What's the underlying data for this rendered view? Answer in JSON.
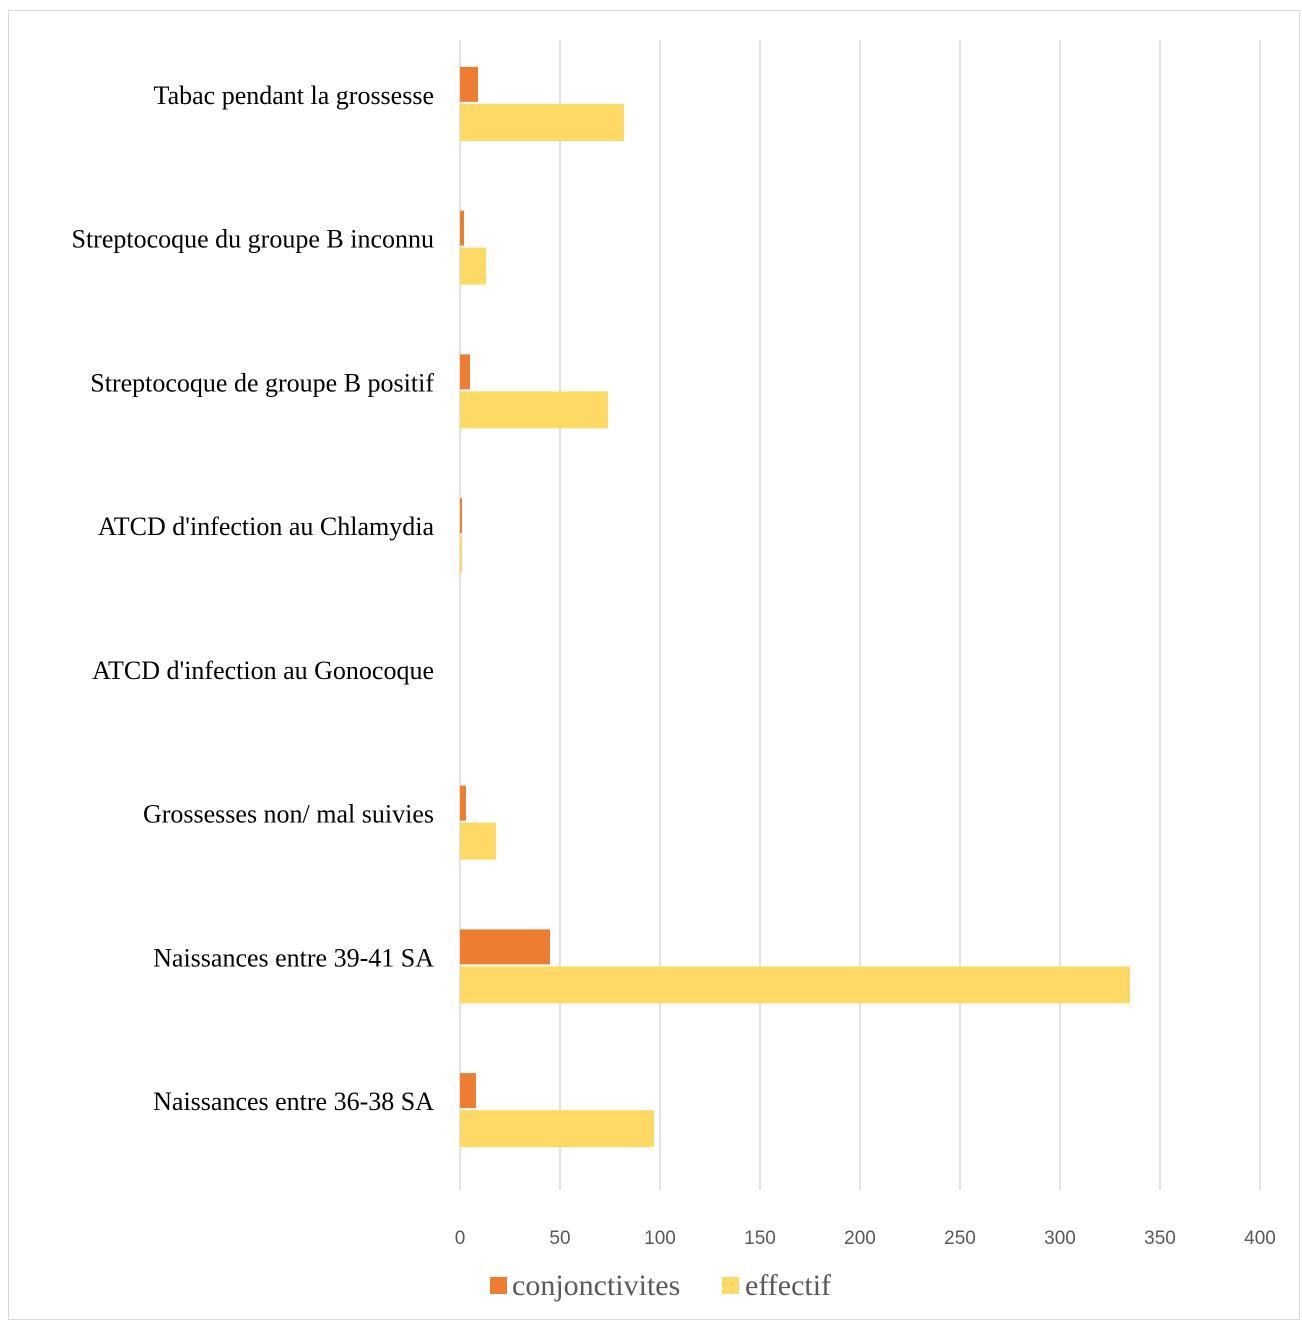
{
  "chart_data": {
    "type": "bar",
    "orientation": "horizontal",
    "categories": [
      "Tabac pendant la grossesse",
      "Streptocoque du groupe B inconnu",
      "Streptocoque de groupe B positif",
      "ATCD d'infection au Chlamydia",
      "ATCD d'infection au Gonocoque",
      "Grossesses non/ mal suivies",
      "Naissances entre 39-41 SA",
      "Naissances entre 36-38 SA"
    ],
    "series": [
      {
        "name": "conjonctivites",
        "color": "#ED7D31",
        "values": [
          9,
          2,
          5,
          1,
          0,
          3,
          45,
          8
        ]
      },
      {
        "name": "effectif",
        "color": "#FFD966",
        "values": [
          82,
          13,
          74,
          1,
          0,
          18,
          335,
          97
        ]
      }
    ],
    "xlim": [
      0,
      400
    ],
    "xticks": [
      "0",
      "50",
      "100",
      "150",
      "200",
      "250",
      "300",
      "350",
      "400"
    ],
    "grid": "vertical",
    "legend_position": "bottom"
  }
}
